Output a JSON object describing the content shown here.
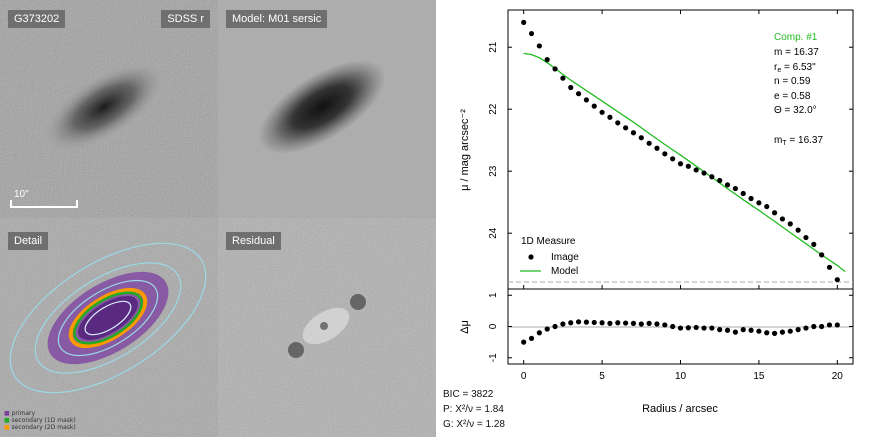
{
  "images": {
    "sdss": {
      "id_label": "G373202",
      "band_label": "SDSS r",
      "scale_label": "10\""
    },
    "model": {
      "label": "Model: M01 sersic"
    },
    "detail": {
      "label": "Detail",
      "legend": [
        "primary",
        "secondary (1D mask)",
        "secondary (2D mask)"
      ],
      "legend_colors": [
        "#7b3fa0",
        "#22aa22",
        "#ff9900"
      ]
    },
    "residual": {
      "label": "Residual"
    }
  },
  "stats": {
    "bic": "BIC = 3822",
    "p": "P: X²/ν = 1.84",
    "g": "G: X²/ν = 1.28"
  },
  "chart_data": {
    "type": "scatter",
    "xlabel": "Radius / arcsec",
    "ylabel": "μ / mag arcsec⁻²",
    "residual_ylabel": "Δμ",
    "xlim": [
      -1,
      21
    ],
    "ylim": [
      24.9,
      20.4
    ],
    "residual_ylim": [
      -1.2,
      1.2
    ],
    "xticks": [
      0,
      5,
      10,
      15,
      20
    ],
    "yticks": [
      21,
      22,
      23,
      24
    ],
    "residual_yticks": [
      1,
      0,
      -1
    ],
    "legend_title": "1D Measure",
    "series": [
      {
        "name": "Image",
        "color": "#000000",
        "x": [
          0,
          0.5,
          1,
          1.5,
          2,
          2.5,
          3,
          3.5,
          4,
          4.5,
          5,
          5.5,
          6,
          6.5,
          7,
          7.5,
          8,
          8.5,
          9,
          9.5,
          10,
          10.5,
          11,
          11.5,
          12,
          12.5,
          13,
          13.5,
          14,
          14.5,
          15,
          15.5,
          16,
          16.5,
          17,
          17.5,
          18,
          18.5,
          19,
          19.5,
          20
        ],
        "y": [
          20.6,
          20.78,
          20.98,
          21.2,
          21.35,
          21.5,
          21.65,
          21.75,
          21.85,
          21.95,
          22.05,
          22.13,
          22.22,
          22.3,
          22.38,
          22.46,
          22.55,
          22.63,
          22.72,
          22.8,
          22.88,
          22.92,
          22.98,
          23.03,
          23.09,
          23.15,
          23.22,
          23.28,
          23.36,
          23.44,
          23.51,
          23.57,
          23.67,
          23.77,
          23.85,
          23.95,
          24.07,
          24.18,
          24.35,
          24.55,
          24.75
        ]
      },
      {
        "name": "Model",
        "color": "#22bb22",
        "x": [
          0,
          0.5,
          1,
          1.5,
          2,
          2.5,
          3,
          4,
          5,
          6,
          7,
          8,
          9,
          10,
          11,
          12,
          13,
          14,
          15,
          16,
          17,
          18,
          19,
          20,
          20.5
        ],
        "y": [
          21.1,
          21.12,
          21.17,
          21.25,
          21.34,
          21.44,
          21.53,
          21.7,
          21.87,
          22.04,
          22.21,
          22.39,
          22.57,
          22.74,
          22.92,
          23.1,
          23.28,
          23.46,
          23.63,
          23.81,
          23.99,
          24.17,
          24.35,
          24.52,
          24.62
        ]
      }
    ],
    "residuals": {
      "x": [
        0,
        0.5,
        1,
        1.5,
        2,
        2.5,
        3,
        3.5,
        4,
        4.5,
        5,
        5.5,
        6,
        6.5,
        7,
        7.5,
        8,
        8.5,
        9,
        9.5,
        10,
        10.5,
        11,
        11.5,
        12,
        12.5,
        13,
        13.5,
        14,
        14.5,
        15,
        15.5,
        16,
        16.5,
        17,
        17.5,
        18,
        18.5,
        19,
        19.5,
        20
      ],
      "y": [
        -0.5,
        -0.38,
        -0.2,
        -0.08,
        0,
        0.08,
        0.12,
        0.15,
        0.14,
        0.13,
        0.12,
        0.1,
        0.12,
        0.11,
        0.1,
        0.08,
        0.1,
        0.08,
        0.05,
        0.0,
        -0.05,
        -0.04,
        -0.03,
        -0.05,
        -0.05,
        -0.1,
        -0.12,
        -0.18,
        -0.1,
        -0.12,
        -0.15,
        -0.2,
        -0.22,
        -0.18,
        -0.15,
        -0.1,
        -0.05,
        0.0,
        0.0,
        0.05,
        0.05
      ]
    },
    "fit_annotations": {
      "title": "Comp. #1",
      "m": "m = 16.37",
      "re": "r",
      "re_sub": "e",
      "re_value": " = 6.53\"",
      "n": "n = 0.59",
      "e": "e = 0.58",
      "theta": "Θ = 32.0°",
      "mT": "m",
      "mT_sub": "T",
      "mT_value": " = 16.37"
    },
    "grid": false,
    "legend_position": "bottom-left",
    "colors": {
      "annotation_title": "#22bb22"
    }
  }
}
